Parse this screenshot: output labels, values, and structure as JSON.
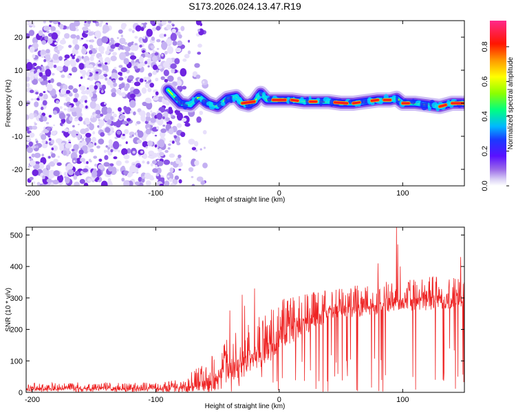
{
  "title": "S173.2026.024.13.47.R19",
  "chart_data": [
    {
      "type": "heatmap",
      "xlabel": "Height of straight line (km)",
      "ylabel": "Frequency (Hz)",
      "xlim": [
        -205,
        150
      ],
      "ylim": [
        -25,
        25
      ],
      "xticks": [
        -200,
        -100,
        0,
        100
      ],
      "yticks": [
        -20,
        -10,
        0,
        10,
        20
      ],
      "colorbar": {
        "label": "Normalized spectral amplitude",
        "range": [
          0.0,
          0.95
        ],
        "ticks": [
          0.0,
          0.2,
          0.4,
          0.6,
          0.8
        ],
        "colors": [
          "#ffffff",
          "#b9a7ee",
          "#7a2be2",
          "#1a1aff",
          "#00c8ff",
          "#00ff60",
          "#b8ff00",
          "#ffff00",
          "#ff9900",
          "#ff0000",
          "#ff2288"
        ]
      },
      "noise_region_x": [
        -205,
        -80
      ],
      "ridge": {
        "points": [
          [
            -90,
            4
          ],
          [
            -85,
            2
          ],
          [
            -80,
            0
          ],
          [
            -72,
            -0.5
          ],
          [
            -65,
            2
          ],
          [
            -58,
            0
          ],
          [
            -50,
            -1
          ],
          [
            -42,
            1.5
          ],
          [
            -35,
            2
          ],
          [
            -30,
            0
          ],
          [
            -25,
            -0.5
          ],
          [
            -20,
            0.5
          ],
          [
            -15,
            3
          ],
          [
            -10,
            1
          ],
          [
            -5,
            1
          ],
          [
            0,
            1
          ],
          [
            10,
            1
          ],
          [
            20,
            0.5
          ],
          [
            30,
            0.5
          ],
          [
            40,
            0.5
          ],
          [
            50,
            0
          ],
          [
            60,
            0
          ],
          [
            70,
            0.5
          ],
          [
            80,
            1
          ],
          [
            90,
            1
          ],
          [
            95,
            1.5
          ],
          [
            100,
            0
          ],
          [
            110,
            0
          ],
          [
            120,
            -0.5
          ],
          [
            130,
            -1
          ],
          [
            140,
            0
          ],
          [
            150,
            0
          ]
        ],
        "peak_segments": [
          [
            -30,
            -20
          ],
          [
            -5,
            5
          ],
          [
            10,
            15
          ],
          [
            25,
            30
          ],
          [
            45,
            55
          ],
          [
            60,
            65
          ],
          [
            75,
            80
          ],
          [
            85,
            90
          ],
          [
            100,
            105
          ],
          [
            130,
            135
          ],
          [
            140,
            150
          ]
        ]
      }
    },
    {
      "type": "line",
      "xlabel": "Height of straight line (km)",
      "ylabel": "SNR (10 * v/v)",
      "xlim": [
        -205,
        150
      ],
      "ylim": [
        0,
        525
      ],
      "xticks": [
        -200,
        -100,
        0,
        100
      ],
      "yticks": [
        0,
        100,
        200,
        300,
        400,
        500
      ],
      "series": [
        {
          "color": "#ee2222",
          "envelope": {
            "x": [
              -205,
              -150,
              -100,
              -80,
              -70,
              -60,
              -50,
              -40,
              -30,
              -20,
              -10,
              0,
              10,
              20,
              30,
              40,
              50,
              60,
              70,
              80,
              90,
              100,
              110,
              120,
              130,
              140,
              150
            ],
            "base": [
              8,
              8,
              8,
              8,
              12,
              18,
              35,
              55,
              65,
              85,
              110,
              150,
              175,
              200,
              220,
              240,
              255,
              250,
              255,
              260,
              270,
              275,
              270,
              275,
              280,
              280,
              285
            ],
            "high": [
              30,
              32,
              32,
              40,
              70,
              90,
              140,
              180,
              200,
              230,
              260,
              290,
              310,
              320,
              325,
              330,
              330,
              340,
              340,
              345,
              360,
              355,
              360,
              370,
              375,
              380,
              385
            ]
          },
          "spikes": [
            [
              -40,
              260
            ],
            [
              -30,
              310
            ],
            [
              -28,
              275
            ],
            [
              -20,
              330
            ],
            [
              80,
              410
            ],
            [
              95,
              525
            ],
            [
              96,
              470
            ],
            [
              98,
              400
            ],
            [
              147,
              430
            ]
          ]
        }
      ]
    }
  ]
}
